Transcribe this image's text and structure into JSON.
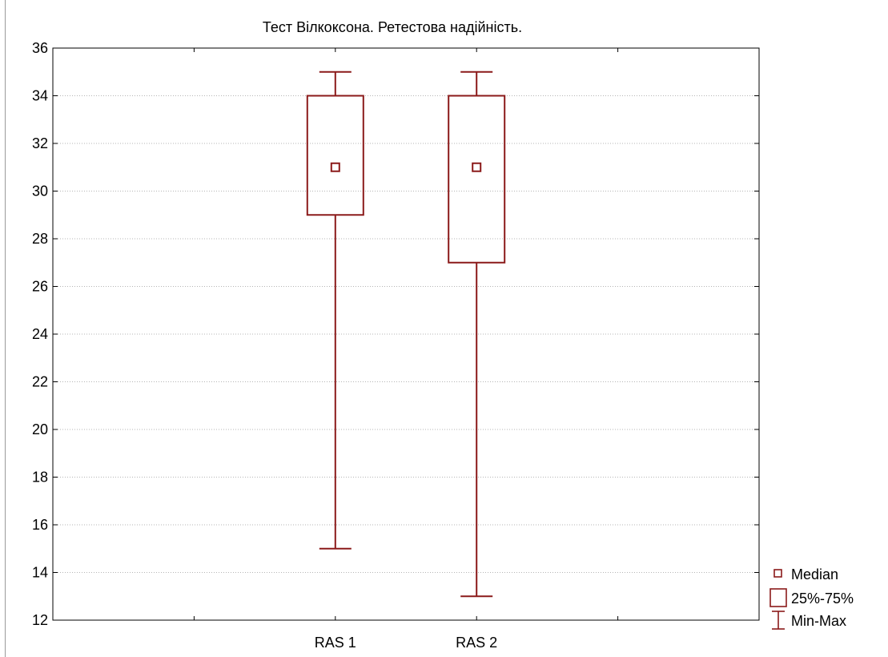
{
  "chart_data": {
    "type": "boxplot",
    "title": "Тест Вілкоксона. Ретестова надійність.",
    "xlabel": "",
    "ylabel": "",
    "ylim": [
      12,
      36
    ],
    "yticks": [
      "12",
      "14",
      "16",
      "18",
      "20",
      "22",
      "24",
      "26",
      "28",
      "30",
      "32",
      "34",
      "36"
    ],
    "categories": [
      "RAS 1",
      "RAS 2"
    ],
    "series": [
      {
        "category": "RAS 1",
        "min": 15,
        "q1": 29,
        "median": 31,
        "q3": 34,
        "max": 35
      },
      {
        "category": "RAS 2",
        "min": 13,
        "q1": 27,
        "median": 31,
        "q3": 34,
        "max": 35
      }
    ],
    "grid": true,
    "legend_position": "bottom-right outside",
    "legend": [
      {
        "symbol": "median-square",
        "label": "Median"
      },
      {
        "symbol": "box",
        "label": "25%-75%"
      },
      {
        "symbol": "whisker",
        "label": "Min-Max"
      }
    ],
    "colors": {
      "box": "#8b1a1a",
      "grid": "#b4b4b4",
      "axis": "#000000"
    }
  }
}
